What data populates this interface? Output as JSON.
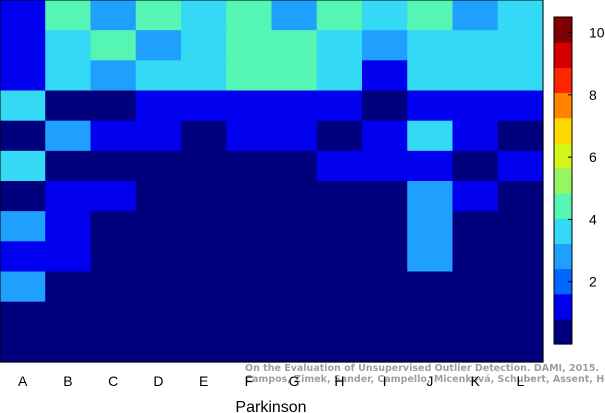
{
  "chart_data": {
    "type": "heatmap",
    "xlabel": "Parkinson",
    "ylabel": "",
    "title": "",
    "columns": [
      "A",
      "B",
      "C",
      "D",
      "E",
      "F",
      "G",
      "H",
      "I",
      "J",
      "K",
      "L"
    ],
    "values": [
      [
        1.5,
        4.5,
        3,
        4.5,
        4,
        4.5,
        3,
        4.5,
        4,
        4.5,
        3,
        4
      ],
      [
        1.5,
        4,
        4.5,
        3,
        4,
        4.5,
        4.5,
        4,
        3,
        4,
        4,
        4
      ],
      [
        1.5,
        4,
        3,
        4,
        4,
        4.5,
        4.5,
        4,
        1.5,
        4,
        4,
        4
      ],
      [
        4,
        0,
        0,
        1.5,
        1.5,
        1.5,
        1.5,
        1.5,
        0,
        1.5,
        1.5,
        1.5
      ],
      [
        0,
        3,
        1.5,
        1.5,
        0,
        1.5,
        1.5,
        0,
        1.5,
        4,
        1.5,
        0
      ],
      [
        4,
        0,
        0,
        0,
        0,
        0,
        0,
        1.5,
        1.5,
        1.5,
        0,
        1.5
      ],
      [
        0,
        1.5,
        1.5,
        0,
        0,
        0,
        0,
        0,
        0,
        3,
        1.5,
        0
      ],
      [
        3,
        1.5,
        0,
        0,
        0,
        0,
        0,
        0,
        0,
        3,
        0,
        0
      ],
      [
        1.5,
        1.5,
        0,
        0,
        0,
        0,
        0,
        0,
        0,
        3,
        0,
        0
      ],
      [
        3,
        0,
        0,
        0,
        0,
        0,
        0,
        0,
        0,
        0,
        0,
        0
      ],
      [
        0,
        0,
        0,
        0,
        0,
        0,
        0,
        0,
        0,
        0,
        0,
        0
      ],
      [
        0,
        0,
        0,
        0,
        0,
        0,
        0,
        0,
        0,
        0,
        0,
        0
      ]
    ],
    "colorbar": {
      "range": [
        0,
        10.5
      ],
      "ticks": [
        2,
        4,
        6,
        8,
        10
      ],
      "colors": [
        "#00007f",
        "#0000ee",
        "#0066ff",
        "#1fa0ff",
        "#34d9f5",
        "#55f5b4",
        "#95f562",
        "#d3f519",
        "#ffd700",
        "#ff8400",
        "#ff2400",
        "#d40000",
        "#7f0000"
      ]
    },
    "credit_lines": [
      "On the Evaluation of Unsupervised Outlier Detection. DAMI, 2015.",
      "Campos, Zimek, Sander, Campello, Micenková, Schubert, Assent, Houle"
    ]
  }
}
